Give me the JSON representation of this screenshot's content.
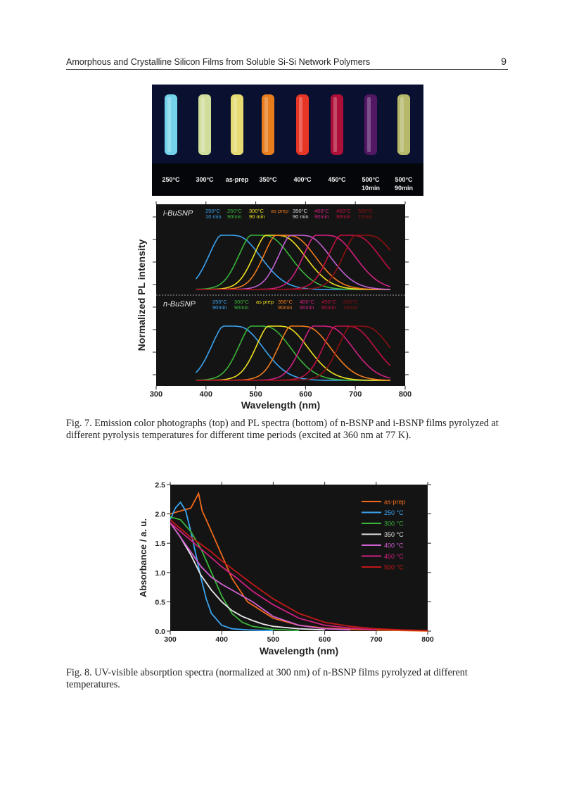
{
  "header": {
    "title": "Amorphous and Crystalline Silicon Films from Soluble Si-Si Network Polymers",
    "page_number": "9"
  },
  "photo": {
    "labels": [
      {
        "line1": "250°C",
        "line2": "",
        "color": "#7fe9ff"
      },
      {
        "line1": "300°C",
        "line2": "",
        "color": "#e6f5a8"
      },
      {
        "line1": "as-prep",
        "line2": "",
        "color": "#fdf27a"
      },
      {
        "line1": "350°C",
        "line2": "",
        "color": "#ff8a1c"
      },
      {
        "line1": "400°C",
        "line2": "",
        "color": "#ff3a26"
      },
      {
        "line1": "450°C",
        "line2": "",
        "color": "#c0103a"
      },
      {
        "line1": "500°C",
        "line2": "10min",
        "color": "#5a1a6a"
      },
      {
        "line1": "500°C",
        "line2": "90min",
        "color": "#c8cc70"
      }
    ]
  },
  "fig7": {
    "caption_label": "Fig. 7.",
    "caption_text": "Emission color photographs (top) and PL spectra (bottom) of n-BSNP and i-BSNP films pyrolyzed at different pyrolysis temperatures for different time periods (excited at 360 nm at 77 K)."
  },
  "fig8": {
    "caption_label": "Fig. 8.",
    "caption_text": "UV-visible absorption spectra (normalized at 300 nm) of n-BSNP films pyrolyzed at different temperatures."
  },
  "chart_data": [
    {
      "type": "line",
      "title": "",
      "xlabel": "Wavelength (nm)",
      "ylabel": "Normalized PL intensity",
      "xlim": [
        300,
        800
      ],
      "xticks": [
        300,
        400,
        500,
        600,
        700,
        800
      ],
      "panels": [
        {
          "name": "i-BuSNP",
          "legend": [
            {
              "l1": "250°C",
              "l2": "10 min",
              "color": "#3aa3f0"
            },
            {
              "l1": "250°C",
              "l2": "90min",
              "color": "#3ab53a"
            },
            {
              "l1": "300°C",
              "l2": "90 min",
              "color": "#f0e020"
            },
            {
              "l1": "as prep",
              "l2": "",
              "color": "#f07a1c"
            },
            {
              "l1": "350°C",
              "l2": "90 min",
              "color": "#dddddd"
            },
            {
              "l1": "400°C",
              "l2": "90min",
              "color": "#d02080"
            },
            {
              "l1": "450°C",
              "l2": "90min",
              "color": "#c01040"
            },
            {
              "l1": "500°C",
              "l2": "10min",
              "color": "#8a1010"
            }
          ],
          "series": [
            {
              "name": "250°C 10 min",
              "color": "#3aa3f0",
              "peak": 460
            },
            {
              "name": "250°C 90min",
              "color": "#3ab53a",
              "peak": 520
            },
            {
              "name": "300°C 90 min",
              "color": "#f0e020",
              "peak": 550
            },
            {
              "name": "as prep",
              "color": "#f07a1c",
              "peak": 570
            },
            {
              "name": "350°C 90 min",
              "color": "#c060d0",
              "peak": 600
            },
            {
              "name": "400°C 90min",
              "color": "#d02080",
              "peak": 650
            },
            {
              "name": "450°C 90min",
              "color": "#c01040",
              "peak": 700
            },
            {
              "name": "500°C 10min",
              "color": "#8a1010",
              "peak": 730
            }
          ]
        },
        {
          "name": "n-BuSNP",
          "legend": [
            {
              "l1": "250°C",
              "l2": "90min",
              "color": "#3aa3f0"
            },
            {
              "l1": "300°C",
              "l2": "90min",
              "color": "#3ab53a"
            },
            {
              "l1": "as prep",
              "l2": "",
              "color": "#f0e020"
            },
            {
              "l1": "350°C",
              "l2": "90min",
              "color": "#f07a1c"
            },
            {
              "l1": "400°C",
              "l2": "90min",
              "color": "#d02080"
            },
            {
              "l1": "450°C",
              "l2": "90min",
              "color": "#c01040"
            },
            {
              "l1": "500°C",
              "l2": "10min",
              "color": "#8a1010"
            }
          ],
          "series": [
            {
              "name": "250°C 90min",
              "color": "#3aa3f0",
              "peak": 465
            },
            {
              "name": "300°C 90min",
              "color": "#3ab53a",
              "peak": 520
            },
            {
              "name": "as prep",
              "color": "#f0e020",
              "peak": 555
            },
            {
              "name": "350°C 90min",
              "color": "#f07a1c",
              "peak": 600
            },
            {
              "name": "400°C 90min",
              "color": "#d02080",
              "peak": 645
            },
            {
              "name": "450°C 90min",
              "color": "#c01040",
              "peak": 690
            },
            {
              "name": "500°C 10min",
              "color": "#8a1010",
              "peak": 720
            }
          ]
        }
      ]
    },
    {
      "type": "line",
      "title": "",
      "xlabel": "Wavelength (nm)",
      "ylabel": "Absorbance / a. u.",
      "xlim": [
        300,
        800
      ],
      "ylim": [
        0.0,
        2.5
      ],
      "xticks": [
        300,
        400,
        500,
        600,
        700,
        800
      ],
      "yticks": [
        "0.0",
        "0.5",
        "1.0",
        "1.5",
        "2.0",
        "2.5"
      ],
      "legend_position": "top-right",
      "series": [
        {
          "name": "as-prep",
          "color": "#f06a1a",
          "x": [
            300,
            320,
            340,
            355,
            362,
            370,
            380,
            400,
            420,
            450,
            500,
            550,
            600,
            650,
            700,
            750,
            800
          ],
          "y": [
            2.0,
            2.05,
            2.1,
            2.35,
            2.05,
            1.9,
            1.7,
            1.3,
            0.9,
            0.5,
            0.22,
            0.1,
            0.05,
            0.03,
            0.02,
            0.01,
            0.0
          ]
        },
        {
          "name": "250 °C",
          "color": "#3aa3f0",
          "x": [
            300,
            310,
            320,
            330,
            340,
            350,
            360,
            370,
            380,
            400,
            420,
            450,
            500
          ],
          "y": [
            1.9,
            2.1,
            2.2,
            2.05,
            1.7,
            1.3,
            0.9,
            0.55,
            0.3,
            0.1,
            0.04,
            0.02,
            0.01
          ]
        },
        {
          "name": "300 °C",
          "color": "#3ab53a",
          "x": [
            300,
            320,
            340,
            360,
            380,
            400,
            420,
            440,
            460,
            500,
            550
          ],
          "y": [
            1.95,
            1.9,
            1.7,
            1.4,
            1.0,
            0.6,
            0.3,
            0.15,
            0.08,
            0.03,
            0.01
          ]
        },
        {
          "name": "350 °C",
          "color": "#e8e8e8",
          "x": [
            300,
            320,
            340,
            360,
            380,
            400,
            420,
            440,
            460,
            480,
            500,
            550,
            600
          ],
          "y": [
            1.85,
            1.6,
            1.3,
            0.95,
            0.7,
            0.5,
            0.35,
            0.25,
            0.18,
            0.12,
            0.08,
            0.04,
            0.02
          ]
        },
        {
          "name": "400 °C",
          "color": "#d060d0",
          "x": [
            300,
            320,
            340,
            360,
            380,
            400,
            430,
            460,
            500,
            550,
            600,
            650
          ],
          "y": [
            1.85,
            1.6,
            1.35,
            1.1,
            0.92,
            0.8,
            0.65,
            0.5,
            0.25,
            0.1,
            0.04,
            0.02
          ]
        },
        {
          "name": "450 °C",
          "color": "#d02080",
          "x": [
            300,
            320,
            340,
            360,
            380,
            400,
            430,
            460,
            500,
            550,
            600,
            650,
            700
          ],
          "y": [
            1.85,
            1.7,
            1.55,
            1.4,
            1.25,
            1.1,
            0.9,
            0.68,
            0.45,
            0.22,
            0.1,
            0.05,
            0.02
          ]
        },
        {
          "name": "500 °C",
          "color": "#c01818",
          "x": [
            300,
            320,
            340,
            360,
            380,
            400,
            430,
            460,
            500,
            550,
            600,
            650,
            700,
            750,
            800
          ],
          "y": [
            1.9,
            1.75,
            1.6,
            1.48,
            1.35,
            1.2,
            1.0,
            0.8,
            0.55,
            0.3,
            0.15,
            0.08,
            0.04,
            0.02,
            0.01
          ]
        }
      ]
    }
  ]
}
